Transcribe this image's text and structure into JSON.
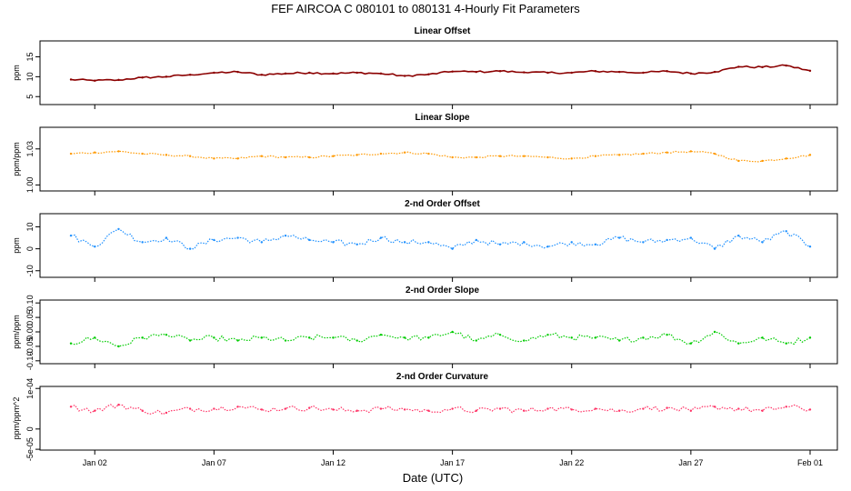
{
  "figure": {
    "title": "FEF   AIRCOA C   080101 to 080131   4-Hourly Fit Parameters",
    "xlabel": "Date (UTC)"
  },
  "chart_data": [
    {
      "type": "line",
      "title": "Linear Offset",
      "ylabel": "ppm",
      "color": "#8b0000",
      "ylim": [
        3,
        19
      ],
      "yticks": [
        5,
        10,
        15
      ],
      "ytick_labels": [
        "5",
        "10",
        "15"
      ],
      "xlim": [
        "2008-01-01",
        "2008-02-01"
      ],
      "xticks": [
        "Jan 02",
        "Jan 07",
        "Jan 12",
        "Jan 17",
        "Jan 22",
        "Jan 27",
        "Feb 01"
      ],
      "x": [
        "2008-01-01",
        "2008-01-02",
        "2008-01-03",
        "2008-01-04",
        "2008-01-05",
        "2008-01-06",
        "2008-01-07",
        "2008-01-08",
        "2008-01-09",
        "2008-01-10",
        "2008-01-11",
        "2008-01-12",
        "2008-01-13",
        "2008-01-14",
        "2008-01-15",
        "2008-01-16",
        "2008-01-17",
        "2008-01-18",
        "2008-01-19",
        "2008-01-20",
        "2008-01-21",
        "2008-01-22",
        "2008-01-23",
        "2008-01-24",
        "2008-01-25",
        "2008-01-26",
        "2008-01-27",
        "2008-01-28",
        "2008-01-29",
        "2008-01-30",
        "2008-01-31",
        "2008-02-01"
      ],
      "values": [
        9.3,
        9.0,
        9.2,
        9.8,
        10.0,
        10.5,
        11.0,
        11.2,
        10.5,
        10.8,
        11.0,
        10.8,
        11.0,
        10.8,
        10.2,
        10.6,
        11.3,
        11.2,
        11.4,
        11.1,
        11.0,
        11.0,
        11.4,
        11.2,
        11.0,
        11.4,
        10.8,
        11.2,
        12.5,
        12.4,
        12.8,
        11.5
      ]
    },
    {
      "type": "line",
      "title": "Linear Slope",
      "ylabel": "ppm/ppm",
      "color": "#ff9900",
      "ylim": [
        0.995,
        1.048
      ],
      "yticks": [
        1.0,
        1.03
      ],
      "ytick_labels": [
        "1.00",
        "1.03"
      ],
      "xlim": [
        "2008-01-01",
        "2008-02-01"
      ],
      "x": [
        "2008-01-01",
        "2008-01-02",
        "2008-01-03",
        "2008-01-04",
        "2008-01-05",
        "2008-01-06",
        "2008-01-07",
        "2008-01-08",
        "2008-01-09",
        "2008-01-10",
        "2008-01-11",
        "2008-01-12",
        "2008-01-13",
        "2008-01-14",
        "2008-01-15",
        "2008-01-16",
        "2008-01-17",
        "2008-01-18",
        "2008-01-19",
        "2008-01-20",
        "2008-01-21",
        "2008-01-22",
        "2008-01-23",
        "2008-01-24",
        "2008-01-25",
        "2008-01-26",
        "2008-01-27",
        "2008-01-28",
        "2008-01-29",
        "2008-01-30",
        "2008-01-31",
        "2008-02-01"
      ],
      "values": [
        1.026,
        1.027,
        1.028,
        1.026,
        1.025,
        1.024,
        1.022,
        1.022,
        1.024,
        1.023,
        1.023,
        1.024,
        1.025,
        1.026,
        1.027,
        1.026,
        1.023,
        1.023,
        1.024,
        1.024,
        1.023,
        1.022,
        1.024,
        1.025,
        1.026,
        1.027,
        1.028,
        1.026,
        1.02,
        1.02,
        1.022,
        1.025
      ]
    },
    {
      "type": "line",
      "title": "2-nd Order Offset",
      "ylabel": "ppm",
      "color": "#1e90ff",
      "ylim": [
        -13,
        16
      ],
      "yticks": [
        -10,
        0,
        10
      ],
      "ytick_labels": [
        "-10",
        "0",
        "10"
      ],
      "xlim": [
        "2008-01-01",
        "2008-02-01"
      ],
      "x": [
        "2008-01-01",
        "2008-01-02",
        "2008-01-03",
        "2008-01-04",
        "2008-01-05",
        "2008-01-06",
        "2008-01-07",
        "2008-01-08",
        "2008-01-09",
        "2008-01-10",
        "2008-01-11",
        "2008-01-12",
        "2008-01-13",
        "2008-01-14",
        "2008-01-15",
        "2008-01-16",
        "2008-01-17",
        "2008-01-18",
        "2008-01-19",
        "2008-01-20",
        "2008-01-21",
        "2008-01-22",
        "2008-01-23",
        "2008-01-24",
        "2008-01-25",
        "2008-01-26",
        "2008-01-27",
        "2008-01-28",
        "2008-01-29",
        "2008-01-30",
        "2008-01-31",
        "2008-02-01"
      ],
      "values": [
        6,
        1,
        9,
        3,
        5,
        0,
        4,
        5,
        3,
        6,
        4,
        3,
        2,
        5,
        3,
        3,
        0,
        4,
        2,
        3,
        1,
        3,
        2,
        5,
        3,
        4,
        5,
        0,
        6,
        3,
        8,
        1
      ]
    },
    {
      "type": "line",
      "title": "2-nd Order Slope",
      "ylabel": "ppm/ppm",
      "color": "#00cc00",
      "ylim": [
        -0.11,
        0.11
      ],
      "yticks": [
        -0.1,
        -0.05,
        0.0,
        0.05,
        0.1
      ],
      "ytick_labels": [
        "-0.10",
        "-0.05",
        "0.00",
        "0.05",
        "0.10"
      ],
      "xlim": [
        "2008-01-01",
        "2008-02-01"
      ],
      "x": [
        "2008-01-01",
        "2008-01-02",
        "2008-01-03",
        "2008-01-04",
        "2008-01-05",
        "2008-01-06",
        "2008-01-07",
        "2008-01-08",
        "2008-01-09",
        "2008-01-10",
        "2008-01-11",
        "2008-01-12",
        "2008-01-13",
        "2008-01-14",
        "2008-01-15",
        "2008-01-16",
        "2008-01-17",
        "2008-01-18",
        "2008-01-19",
        "2008-01-20",
        "2008-01-21",
        "2008-01-22",
        "2008-01-23",
        "2008-01-24",
        "2008-01-25",
        "2008-01-26",
        "2008-01-27",
        "2008-01-28",
        "2008-01-29",
        "2008-01-30",
        "2008-01-31",
        "2008-02-01"
      ],
      "values": [
        -0.04,
        -0.02,
        -0.05,
        -0.02,
        -0.01,
        -0.03,
        -0.02,
        -0.03,
        -0.02,
        -0.03,
        -0.02,
        -0.02,
        -0.03,
        -0.01,
        -0.02,
        -0.02,
        0.0,
        -0.03,
        -0.01,
        -0.03,
        -0.01,
        -0.02,
        -0.02,
        -0.03,
        -0.02,
        -0.01,
        -0.04,
        0.0,
        -0.04,
        -0.02,
        -0.04,
        -0.02
      ]
    },
    {
      "type": "line",
      "title": "2-nd Order Curvature",
      "ylabel": "ppm/ppm^2",
      "color": "#ff3366",
      "ylim": [
        -5.2e-05,
        0.000105
      ],
      "yticks": [
        -5e-05,
        0.0,
        0.0001
      ],
      "ytick_labels": [
        "-5e-05",
        "0",
        "1e-04"
      ],
      "xlim": [
        "2008-01-01",
        "2008-02-01"
      ],
      "x": [
        "2008-01-01",
        "2008-01-02",
        "2008-01-03",
        "2008-01-04",
        "2008-01-05",
        "2008-01-06",
        "2008-01-07",
        "2008-01-08",
        "2008-01-09",
        "2008-01-10",
        "2008-01-11",
        "2008-01-12",
        "2008-01-13",
        "2008-01-14",
        "2008-01-15",
        "2008-01-16",
        "2008-01-17",
        "2008-01-18",
        "2008-01-19",
        "2008-01-20",
        "2008-01-21",
        "2008-01-22",
        "2008-01-23",
        "2008-01-24",
        "2008-01-25",
        "2008-01-26",
        "2008-01-27",
        "2008-01-28",
        "2008-01-29",
        "2008-01-30",
        "2008-01-31",
        "2008-02-01"
      ],
      "values": [
        5.5e-05,
        4.5e-05,
        6e-05,
        4.5e-05,
        4e-05,
        5e-05,
        5e-05,
        5.5e-05,
        4.8e-05,
        5e-05,
        5.2e-05,
        4.8e-05,
        4.5e-05,
        5e-05,
        4.8e-05,
        4.5e-05,
        5e-05,
        4.5e-05,
        5e-05,
        4.5e-05,
        5e-05,
        4.8e-05,
        5e-05,
        4.5e-05,
        5e-05,
        5.2e-05,
        4.5e-05,
        5.5e-05,
        5e-05,
        4.5e-05,
        5.5e-05,
        4.8e-05
      ]
    }
  ]
}
